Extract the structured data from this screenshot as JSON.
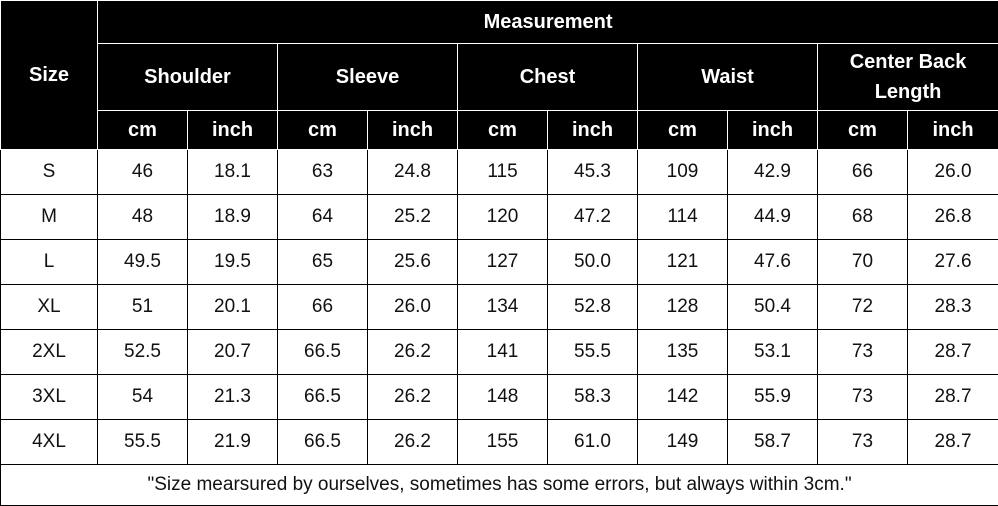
{
  "table": {
    "title": "Measurement",
    "size_label": "Size",
    "groups": [
      "Shoulder",
      "Sleeve",
      "Chest",
      "Waist",
      "Center Back Length"
    ],
    "units": [
      "cm",
      "inch",
      "cm",
      "inch",
      "cm",
      "inch",
      "cm",
      "inch",
      "cm",
      "inch"
    ],
    "rows": [
      [
        "S",
        "46",
        "18.1",
        "63",
        "24.8",
        "115",
        "45.3",
        "109",
        "42.9",
        "66",
        "26.0"
      ],
      [
        "M",
        "48",
        "18.9",
        "64",
        "25.2",
        "120",
        "47.2",
        "114",
        "44.9",
        "68",
        "26.8"
      ],
      [
        "L",
        "49.5",
        "19.5",
        "65",
        "25.6",
        "127",
        "50.0",
        "121",
        "47.6",
        "70",
        "27.6"
      ],
      [
        "XL",
        "51",
        "20.1",
        "66",
        "26.0",
        "134",
        "52.8",
        "128",
        "50.4",
        "72",
        "28.3"
      ],
      [
        "2XL",
        "52.5",
        "20.7",
        "66.5",
        "26.2",
        "141",
        "55.5",
        "135",
        "53.1",
        "73",
        "28.7"
      ],
      [
        "3XL",
        "54",
        "21.3",
        "66.5",
        "26.2",
        "148",
        "58.3",
        "142",
        "55.9",
        "73",
        "28.7"
      ],
      [
        "4XL",
        "55.5",
        "21.9",
        "66.5",
        "26.2",
        "155",
        "61.0",
        "149",
        "58.7",
        "73",
        "28.7"
      ]
    ],
    "note": "\"Size mearsured by ourselves, sometimes has some errors, but always within 3cm.\""
  }
}
